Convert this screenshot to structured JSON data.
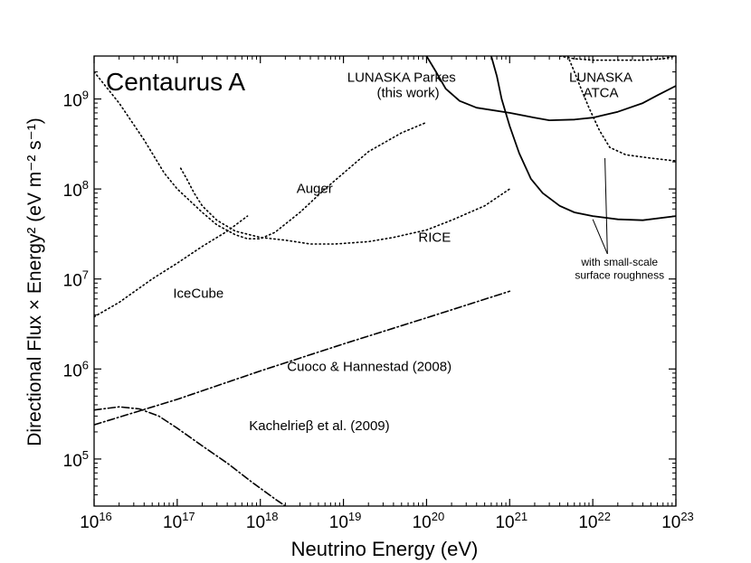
{
  "chart_data": {
    "type": "line",
    "title": "Centaurus A",
    "xlabel": "Neutrino Energy (eV)",
    "ylabel": "Directional Flux × Energy² (eV m⁻² s⁻¹)",
    "xscale": "log",
    "yscale": "log",
    "xlim": [
      1e+16,
      1e+23
    ],
    "ylim": [
      30000,
      3000000000
    ],
    "grid": false,
    "x_ticks": [
      {
        "value": 1e+16,
        "base": "10",
        "exp": "16"
      },
      {
        "value": 1e+17,
        "base": "10",
        "exp": "17"
      },
      {
        "value": 1e+18,
        "base": "10",
        "exp": "18"
      },
      {
        "value": 1e+19,
        "base": "10",
        "exp": "19"
      },
      {
        "value": 1e+20,
        "base": "10",
        "exp": "20"
      },
      {
        "value": 1e+21,
        "base": "10",
        "exp": "21"
      },
      {
        "value": 1e+22,
        "base": "10",
        "exp": "22"
      },
      {
        "value": 1e+23,
        "base": "10",
        "exp": "23"
      }
    ],
    "y_ticks": [
      {
        "value": 100000.0,
        "base": "10",
        "exp": "5"
      },
      {
        "value": 1000000.0,
        "base": "10",
        "exp": "6"
      },
      {
        "value": 10000000.0,
        "base": "10",
        "exp": "7"
      },
      {
        "value": 100000000.0,
        "base": "10",
        "exp": "8"
      },
      {
        "value": 1000000000.0,
        "base": "10",
        "exp": "9"
      }
    ],
    "series": [
      {
        "style": "solid",
        "points": [
          [
            1e+20,
            3000000000.0
          ],
          [
            1.3e+20,
            2000000000.0
          ],
          [
            1.7e+20,
            1300000000.0
          ],
          [
            2.5e+20,
            950000000.0
          ],
          [
            4e+20,
            800000000.0
          ],
          [
            1e+21,
            700000000.0
          ],
          [
            2e+21,
            620000000.0
          ],
          [
            3e+21,
            580000000.0
          ],
          [
            6e+21,
            590000000.0
          ],
          [
            1e+22,
            620000000.0
          ],
          [
            2e+22,
            720000000.0
          ],
          [
            4e+22,
            900000000.0
          ],
          [
            6e+22,
            1100000000.0
          ],
          [
            1e+23,
            1400000000.0
          ]
        ]
      },
      {
        "style": "solid",
        "points": [
          [
            6e+20,
            3000000000.0
          ],
          [
            7e+20,
            1800000000.0
          ],
          [
            8e+20,
            1000000000.0
          ],
          [
            1e+21,
            500000000.0
          ],
          [
            1.3e+21,
            250000000.0
          ],
          [
            1.8e+21,
            130000000.0
          ],
          [
            2.5e+21,
            90000000.0
          ],
          [
            4e+21,
            65000000.0
          ],
          [
            6e+21,
            55000000.0
          ],
          [
            1e+22,
            50000000.0
          ],
          [
            2e+22,
            46000000.0
          ],
          [
            4e+22,
            45000000.0
          ],
          [
            1e+23,
            50000000.0
          ]
        ]
      },
      {
        "style": "dotted",
        "points": [
          [
            4e+21,
            3000000000.0
          ],
          [
            6e+21,
            2800000000.0
          ],
          [
            1e+22,
            2700000000.0
          ],
          [
            2e+22,
            2700000000.0
          ],
          [
            4e+22,
            2700000000.0
          ],
          [
            7e+22,
            2800000000.0
          ],
          [
            1e+23,
            3000000000.0
          ]
        ]
      },
      {
        "style": "dotted",
        "points": [
          [
            5e+21,
            3000000000.0
          ],
          [
            6e+21,
            2000000000.0
          ],
          [
            7e+21,
            1400000000.0
          ],
          [
            9e+21,
            800000000.0
          ],
          [
            1.2e+22,
            450000000.0
          ],
          [
            1.6e+22,
            290000000.0
          ],
          [
            2.5e+22,
            240000000.0
          ],
          [
            5e+22,
            220000000.0
          ],
          [
            1e+23,
            205000000.0
          ]
        ]
      },
      {
        "style": "dotted",
        "points": [
          [
            1e+16,
            2000000000.0
          ],
          [
            2e+16,
            900000000.0
          ],
          [
            4e+16,
            350000000.0
          ],
          [
            7e+16,
            150000000.0
          ],
          [
            1e+17,
            100000000.0
          ],
          [
            2e+17,
            55000000.0
          ],
          [
            3e+17,
            40000000.0
          ],
          [
            5e+17,
            31000000.0
          ],
          [
            7e+17,
            28000000.0
          ],
          [
            1e+18,
            28000000.0
          ],
          [
            1.5e+18,
            33000000.0
          ],
          [
            3e+18,
            55000000.0
          ],
          [
            6e+18,
            100000000.0
          ],
          [
            1e+19,
            150000000.0
          ],
          [
            2e+19,
            260000000.0
          ],
          [
            5e+19,
            420000000.0
          ],
          [
            1e+20,
            550000000.0
          ]
        ]
      },
      {
        "style": "dotted",
        "points": [
          [
            1.1e+17,
            170000000.0
          ],
          [
            1.3e+17,
            130000000.0
          ],
          [
            1.6e+17,
            90000000.0
          ],
          [
            2e+17,
            65000000.0
          ],
          [
            3e+17,
            45000000.0
          ],
          [
            5e+17,
            34000000.0
          ],
          [
            1e+18,
            29000000.0
          ],
          [
            2e+18,
            27000000.0
          ],
          [
            4e+18,
            24500000.0
          ],
          [
            8e+18,
            24500000.0
          ],
          [
            2e+19,
            26000000.0
          ],
          [
            4e+19,
            29000000.0
          ],
          [
            1e+20,
            35000000.0
          ],
          [
            2e+20,
            45000000.0
          ],
          [
            5e+20,
            65000000.0
          ],
          [
            1e+21,
            100000000.0
          ]
        ]
      },
      {
        "style": "dotted",
        "points": [
          [
            1e+16,
            3800000.0
          ],
          [
            2e+16,
            5500000.0
          ],
          [
            5e+16,
            10000000.0
          ],
          [
            1e+17,
            15000000.0
          ],
          [
            2e+17,
            23000000.0
          ],
          [
            4e+17,
            34000000.0
          ],
          [
            7e+17,
            50000000.0
          ]
        ]
      },
      {
        "style": "dashdot",
        "points": [
          [
            1e+16,
            240000.0
          ],
          [
            1e+17,
            460000.0
          ],
          [
            1e+18,
            950000.0
          ],
          [
            1e+19,
            1900000.0
          ],
          [
            1e+20,
            3700000.0
          ],
          [
            1e+21,
            7300000.0
          ]
        ]
      },
      {
        "style": "dashdot",
        "points": [
          [
            1e+16,
            350000.0
          ],
          [
            2e+16,
            380000.0
          ],
          [
            3.5e+16,
            360000.0
          ],
          [
            6e+16,
            300000.0
          ],
          [
            1e+17,
            220000.0
          ],
          [
            2e+17,
            140000.0
          ],
          [
            4e+17,
            90000.0
          ],
          [
            8e+17,
            55000.0
          ],
          [
            1.5e+18,
            36000.0
          ],
          [
            2e+18,
            30000.0
          ]
        ]
      }
    ],
    "annotations": [
      {
        "text": "LUNASKA Parkes",
        "x": 5e+19,
        "y": 1550000000.0,
        "size": "normal",
        "align": "middle"
      },
      {
        "text": "(this work)",
        "x": 6e+19,
        "y": 1050000000.0,
        "size": "normal",
        "align": "middle"
      },
      {
        "text": "LUNASKA",
        "x": 1.25e+22,
        "y": 1550000000.0,
        "size": "normal",
        "align": "middle"
      },
      {
        "text": "ATCA",
        "x": 1.25e+22,
        "y": 1050000000.0,
        "size": "normal",
        "align": "middle"
      },
      {
        "text": "Auger",
        "x": 4.5e+18,
        "y": 90000000.0,
        "size": "normal",
        "align": "middle"
      },
      {
        "text": "RICE",
        "x": 1.25e+20,
        "y": 26000000.0,
        "size": "normal",
        "align": "middle"
      },
      {
        "text": "IceCube",
        "x": 1.8e+17,
        "y": 6200000.0,
        "size": "normal",
        "align": "middle"
      },
      {
        "text": "Cuoco & Hannestad (2008)",
        "x": 2e+20,
        "y": 950000.0,
        "size": "normal",
        "align": "end"
      },
      {
        "text": "Kachelrieβ et al. (2009)",
        "x": 3.6e+19,
        "y": 210000.0,
        "size": "normal",
        "align": "end"
      },
      {
        "text": "with small-scale",
        "x": 2.1e+22,
        "y": 14000000.0,
        "size": "small",
        "align": "middle"
      },
      {
        "text": "surface roughness",
        "x": 2.1e+22,
        "y": 10000000.0,
        "size": "small",
        "align": "middle"
      }
    ],
    "pointers": [
      {
        "from": [
          1.5e+22,
          19000000.0
        ],
        "to": [
          1.4e+22,
          220000000.0
        ]
      },
      {
        "from": [
          1.5e+22,
          19000000.0
        ],
        "to": [
          1e+22,
          46000000.0
        ]
      }
    ]
  }
}
